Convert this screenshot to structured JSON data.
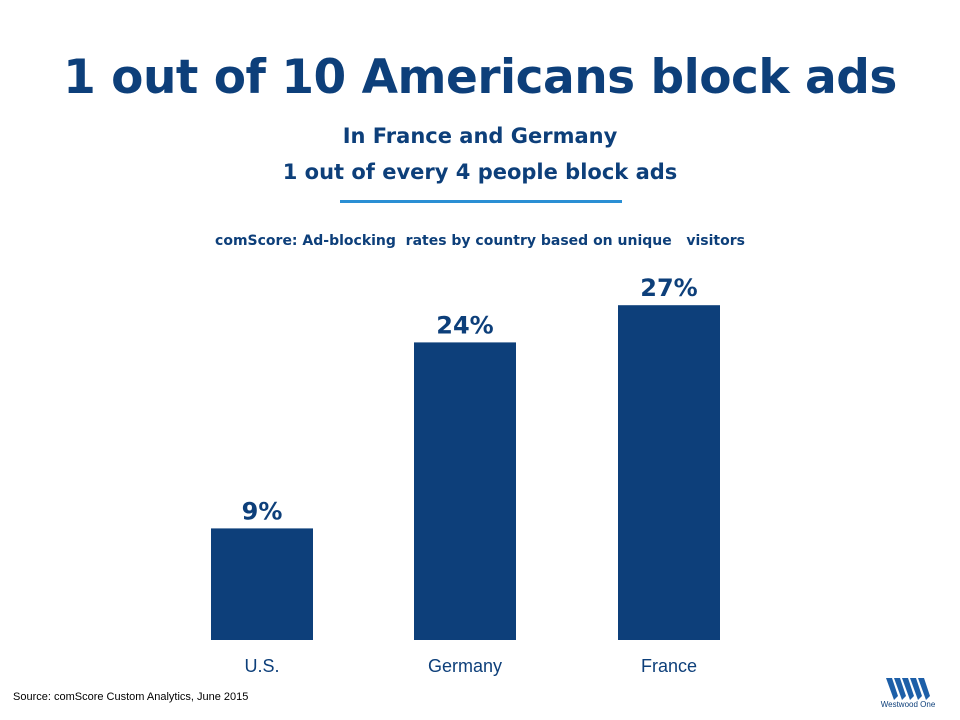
{
  "header": {
    "title": "1 out of 10 Americans block ads",
    "subtitle_line1": "In France and Germany",
    "subtitle_line2": "1 out of every 4 people block ads"
  },
  "chart_data": {
    "type": "bar",
    "title": "comScore: Ad-blocking  rates by country based on unique   visitors",
    "categories": [
      "U.S.",
      "Germany",
      "France"
    ],
    "values": [
      9,
      24,
      27
    ],
    "value_labels": [
      "9%",
      "24%",
      "27%"
    ],
    "xlabel": "",
    "ylabel": "",
    "ylim": [
      0,
      30
    ],
    "grid": false,
    "legend": "none",
    "bar_color": "#0d3f7a"
  },
  "footer": {
    "source": "Source: comScore Custom Analytics, June 2015",
    "brand": "Westwood One"
  },
  "colors": {
    "primary": "#0d3f7a",
    "accent_rule": "#2a8fd4"
  },
  "icons": {
    "logo": "westwood-one-logo-icon"
  }
}
